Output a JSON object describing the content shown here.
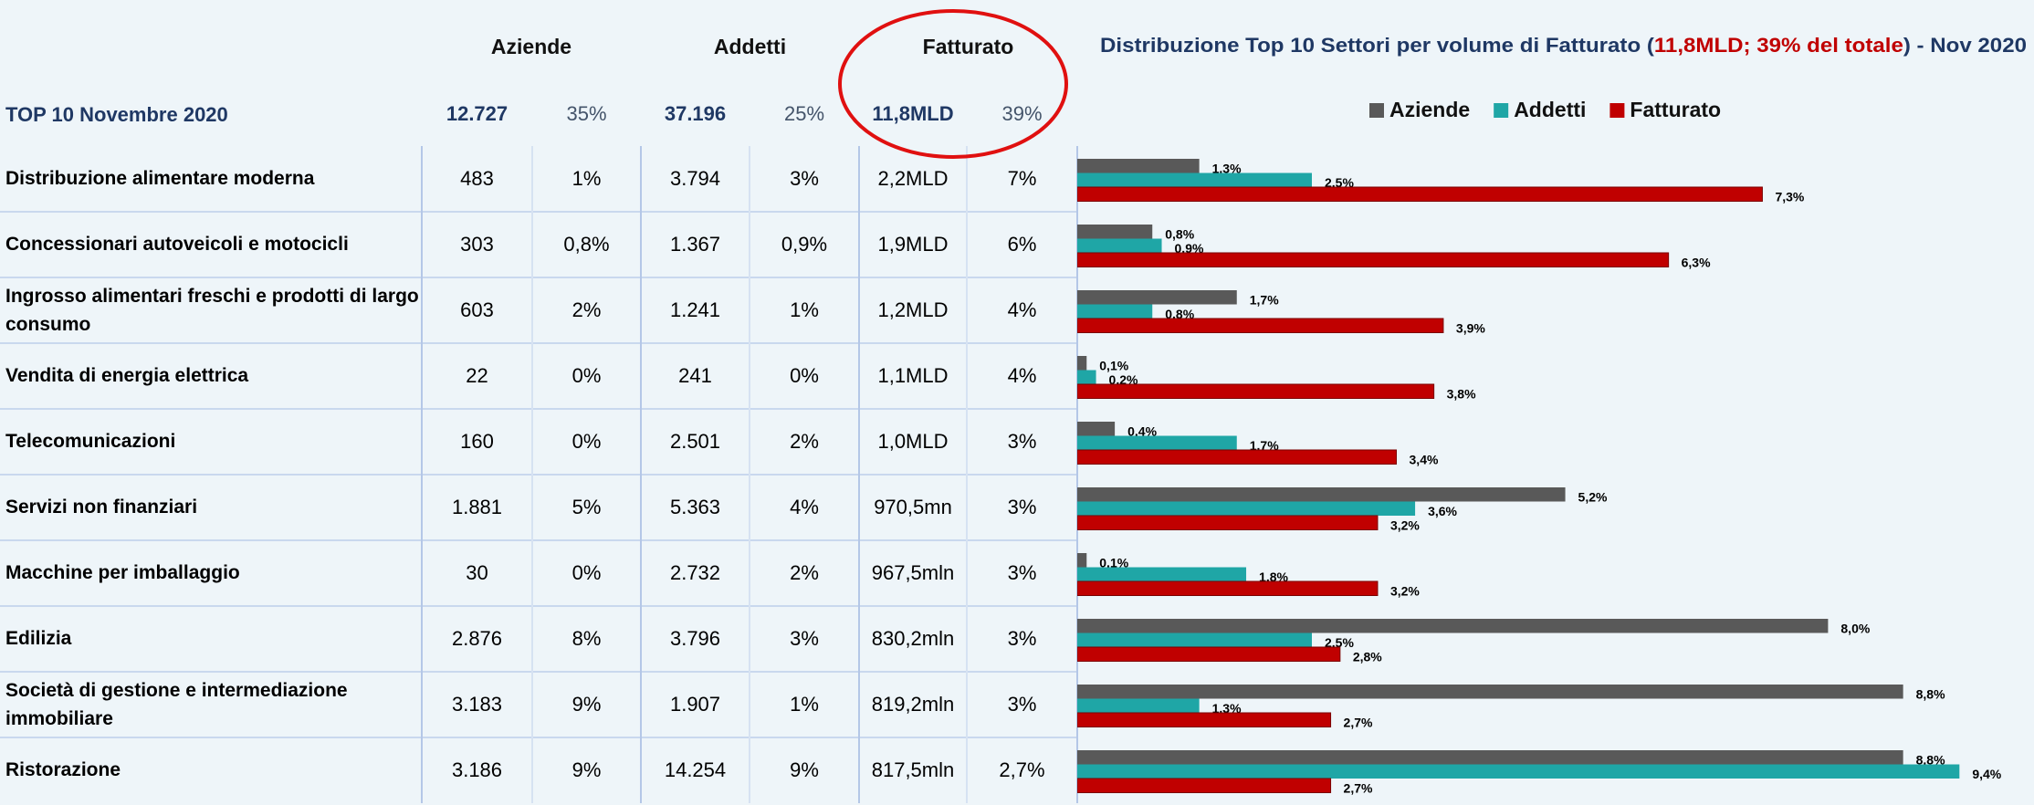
{
  "table": {
    "headers": [
      "Aziende",
      "Addetti",
      "Fatturato"
    ],
    "total": [
      "TOP 10 Novembre 2020",
      "12.727",
      "35%",
      "37.196",
      "25%",
      "11,8MLD",
      "39%"
    ],
    "rows": [
      [
        "Distribuzione alimentare moderna",
        "483",
        "1%",
        "3.794",
        "3%",
        "2,2MLD",
        "7%"
      ],
      [
        "Concessionari autoveicoli e motocicli",
        "303",
        "0,8%",
        "1.367",
        "0,9%",
        "1,9MLD",
        "6%"
      ],
      [
        "Ingrosso alimentari freschi e prodotti di largo consumo",
        "603",
        "2%",
        "1.241",
        "1%",
        "1,2MLD",
        "4%"
      ],
      [
        "Vendita di energia elettrica",
        "22",
        "0%",
        "241",
        "0%",
        "1,1MLD",
        "4%"
      ],
      [
        "Telecomunicazioni",
        "160",
        "0%",
        "2.501",
        "2%",
        "1,0MLD",
        "3%"
      ],
      [
        "Servizi non finanziari",
        "1.881",
        "5%",
        "5.363",
        "4%",
        "970,5mn",
        "3%"
      ],
      [
        "Macchine per imballaggio",
        "30",
        "0%",
        "2.732",
        "2%",
        "967,5mln",
        "3%"
      ],
      [
        "Edilizia",
        "2.876",
        "8%",
        "3.796",
        "3%",
        "830,2mln",
        "3%"
      ],
      [
        "Società di gestione e intermediazione immobiliare",
        "3.183",
        "9%",
        "1.907",
        "1%",
        "819,2mln",
        "3%"
      ],
      [
        "Ristorazione",
        "3.186",
        "9%",
        "14.254",
        "9%",
        "817,5mln",
        "2,7%"
      ]
    ]
  },
  "chart_data": {
    "type": "bar",
    "orientation": "horizontal",
    "title_parts": [
      {
        "text": "Distribuzione Top 10 Settori per volume di Fatturato (",
        "color": "#1f3864"
      },
      {
        "text": "11,8MLD; 39% del totale",
        "color": "#c00000"
      },
      {
        "text": ") - Nov 2020",
        "color": "#1f3864"
      }
    ],
    "legend": "top",
    "series": [
      {
        "name": "Aziende",
        "color": "#595959",
        "values": [
          1.3,
          0.8,
          1.7,
          0.1,
          0.4,
          5.2,
          0.1,
          8.0,
          8.8,
          8.8
        ],
        "value_labels": [
          "1,3%",
          "0,8%",
          "1,7%",
          "0,1%",
          "0,4%",
          "5,2%",
          "0,1%",
          "8,0%",
          "8,8%",
          "8,8%"
        ]
      },
      {
        "name": "Addetti",
        "color": "#1fa6a6",
        "values": [
          2.5,
          0.9,
          0.8,
          0.2,
          1.7,
          3.6,
          1.8,
          2.5,
          1.3,
          9.4
        ],
        "value_labels": [
          "2,5%",
          "0,9%",
          "0,8%",
          "0,2%",
          "1,7%",
          "3,6%",
          "1,8%",
          "2,5%",
          "1,3%",
          "9,4%"
        ]
      },
      {
        "name": "Fatturato",
        "color": "#c00000",
        "values": [
          7.3,
          6.3,
          3.9,
          3.8,
          3.4,
          3.2,
          3.2,
          2.8,
          2.7,
          2.7
        ],
        "value_labels": [
          "7,3%",
          "6,3%",
          "3,9%",
          "3,8%",
          "3,4%",
          "3,2%",
          "3,2%",
          "2,8%",
          "2,7%",
          "2,7%"
        ]
      }
    ]
  }
}
